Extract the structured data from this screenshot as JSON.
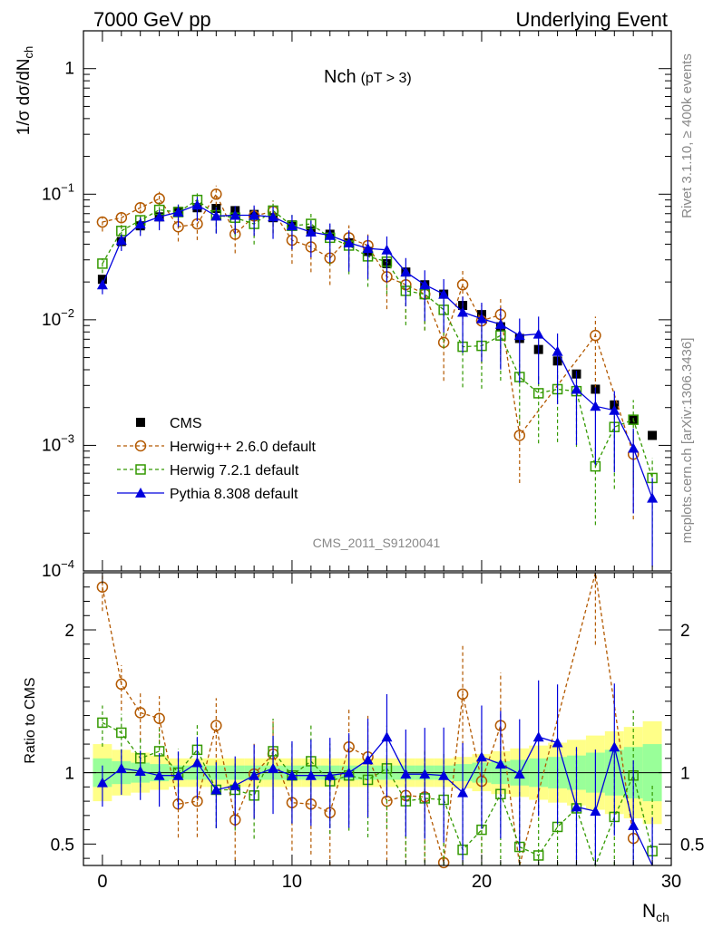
{
  "header": {
    "left": "7000 GeV pp",
    "right": "Underlying Event"
  },
  "plot_title": {
    "main": "Nch",
    "cut": "(pT >  3)"
  },
  "side_labels": {
    "rivet": "Rivet 3.1.10, ≥ 400k events",
    "mcplots": "mcplots.cern.ch [arXiv:1306.3436]"
  },
  "analysis_tag": "CMS_2011_S9120041",
  "y_label_main": "1/σ dσ/dN_ch",
  "y_label_ratio": "Ratio to CMS",
  "x_label": "N_ch",
  "colors": {
    "cms": "#000000",
    "herwigpp": "#b35900",
    "herwig7": "#339900",
    "pythia": "#0000dd",
    "band_inner": "#99ff99",
    "band_outer": "#ffff88"
  },
  "chart_data": [
    {
      "type": "scatter",
      "panel": "main",
      "y_scale": "log",
      "xlim": [
        -1,
        30
      ],
      "ylim": [
        0.0001,
        2
      ],
      "x_ticks": [
        "0",
        "10",
        "20",
        "30"
      ],
      "y_ticks": [
        "10^-4",
        "10^-3",
        "10^-2",
        "10^-1",
        "1"
      ],
      "x": [
        0,
        1,
        2,
        3,
        4,
        5,
        6,
        7,
        8,
        9,
        10,
        11,
        12,
        13,
        14,
        15,
        16,
        17,
        18,
        19,
        20,
        21,
        22,
        23,
        24,
        25,
        26,
        27,
        28,
        29
      ],
      "series": [
        {
          "name": "CMS",
          "marker": "square-filled",
          "values": [
            0.021,
            0.042,
            0.056,
            0.066,
            0.073,
            0.078,
            0.077,
            0.074,
            0.069,
            0.065,
            0.057,
            0.051,
            0.048,
            0.041,
            0.035,
            0.028,
            0.024,
            0.019,
            0.016,
            0.013,
            0.011,
            0.0088,
            0.0071,
            0.0058,
            0.0047,
            0.0037,
            0.0028,
            0.0021,
            0.0016,
            0.0012
          ]
        },
        {
          "name": "Herwig++ 2.6.0 default",
          "marker": "circle-open",
          "values": [
            0.06,
            0.065,
            0.078,
            0.092,
            0.055,
            0.058,
            0.1,
            0.048,
            0.067,
            0.073,
            0.043,
            0.038,
            0.031,
            0.045,
            0.039,
            0.022,
            0.019,
            0.016,
            0.0066,
            0.019,
            0.0098,
            0.011,
            0.0012,
            null,
            null,
            null,
            0.0075,
            null,
            0.00085,
            null
          ]
        },
        {
          "name": "Herwig 7.2.1 default",
          "marker": "square-open",
          "values": [
            0.028,
            0.051,
            0.062,
            0.075,
            0.072,
            0.09,
            0.068,
            0.065,
            0.058,
            0.074,
            0.056,
            0.058,
            0.045,
            0.039,
            0.032,
            0.029,
            0.017,
            0.016,
            0.012,
            0.0061,
            0.0062,
            0.0075,
            0.0035,
            0.0026,
            0.0028,
            0.0027,
            0.00068,
            0.0014,
            0.0016,
            0.00055
          ]
        },
        {
          "name": "Pythia 8.308 default",
          "marker": "triangle-filled",
          "values": [
            0.019,
            0.043,
            0.058,
            0.066,
            0.072,
            0.082,
            0.067,
            0.068,
            0.068,
            0.066,
            0.056,
            0.05,
            0.047,
            0.041,
            0.037,
            0.036,
            0.024,
            0.019,
            0.016,
            0.0115,
            0.0102,
            0.0092,
            0.0075,
            0.0077,
            0.0056,
            0.0028,
            0.00205,
            0.0019,
            0.00095,
            0.00038
          ]
        }
      ],
      "legend_position": "bottom-left"
    },
    {
      "type": "line",
      "panel": "ratio",
      "xlim": [
        -1,
        30
      ],
      "ylim": [
        0.35,
        2.4
      ],
      "x_ticks": [
        "0",
        "10",
        "20",
        "30"
      ],
      "y_ticks": [
        "0.5",
        "1",
        "2"
      ],
      "reference": 1,
      "x": [
        0,
        1,
        2,
        3,
        4,
        5,
        6,
        7,
        8,
        9,
        10,
        11,
        12,
        13,
        14,
        15,
        16,
        17,
        18,
        19,
        20,
        21,
        22,
        23,
        24,
        25,
        26,
        27,
        28,
        29
      ],
      "band_inner": [
        0.1,
        0.08,
        0.07,
        0.06,
        0.05,
        0.05,
        0.05,
        0.05,
        0.05,
        0.05,
        0.05,
        0.05,
        0.05,
        0.05,
        0.05,
        0.05,
        0.05,
        0.05,
        0.05,
        0.06,
        0.07,
        0.08,
        0.09,
        0.1,
        0.11,
        0.12,
        0.14,
        0.16,
        0.18,
        0.2
      ],
      "band_outer": [
        0.2,
        0.16,
        0.14,
        0.12,
        0.1,
        0.1,
        0.1,
        0.1,
        0.1,
        0.1,
        0.1,
        0.1,
        0.1,
        0.1,
        0.1,
        0.1,
        0.1,
        0.1,
        0.1,
        0.11,
        0.13,
        0.15,
        0.17,
        0.19,
        0.21,
        0.23,
        0.26,
        0.29,
        0.32,
        0.36
      ],
      "series": [
        {
          "name": "Herwig++ 2.6.0 default",
          "values": [
            2.3,
            1.62,
            1.42,
            1.38,
            0.78,
            0.8,
            1.33,
            0.67,
            0.99,
            1.13,
            0.79,
            0.78,
            0.72,
            1.18,
            1.11,
            0.8,
            0.84,
            0.83,
            0.37,
            1.55,
            0.94,
            1.33,
            0.28,
            null,
            null,
            null,
            2.5,
            null,
            0.54,
            null
          ]
        },
        {
          "name": "Herwig 7.2.1 default",
          "values": [
            1.35,
            1.28,
            1.1,
            1.15,
            1.0,
            1.16,
            0.88,
            0.88,
            0.84,
            1.15,
            0.98,
            1.08,
            0.94,
            0.98,
            0.95,
            1.03,
            0.8,
            0.82,
            0.81,
            0.46,
            0.6,
            0.85,
            0.48,
            0.42,
            0.62,
            0.75,
            0.23,
            0.69,
            0.98,
            0.45
          ]
        },
        {
          "name": "Pythia 8.308 default",
          "values": [
            0.93,
            1.03,
            1.01,
            0.98,
            0.98,
            1.07,
            0.88,
            0.91,
            0.98,
            1.03,
            0.98,
            0.98,
            0.98,
            1.0,
            1.09,
            1.25,
            0.99,
            0.99,
            0.98,
            0.86,
            1.11,
            1.06,
            0.99,
            1.25,
            1.21,
            0.76,
            0.73,
            1.18,
            0.63,
            0.22
          ]
        }
      ]
    }
  ]
}
